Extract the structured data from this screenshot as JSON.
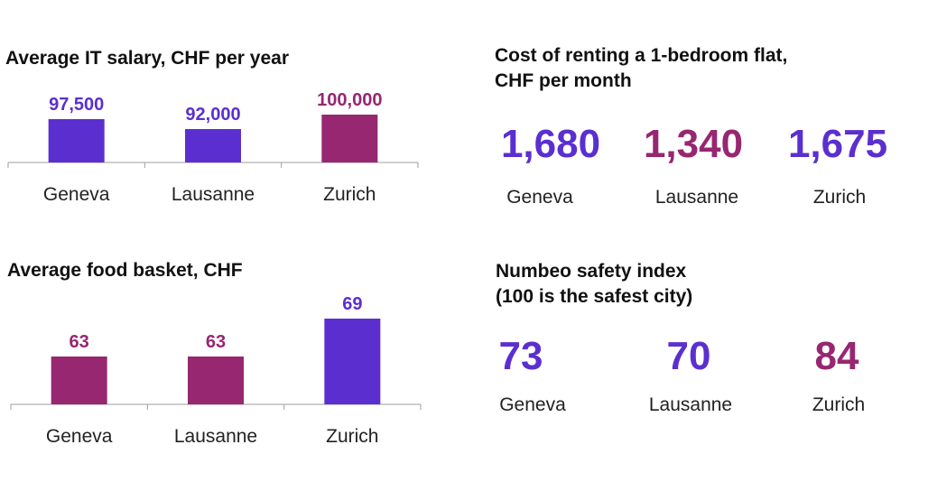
{
  "colors": {
    "purple": "#5b2fcf",
    "magenta": "#962770",
    "axis": "#9e9e9e",
    "text": "#111111"
  },
  "chart_data": [
    {
      "type": "bar",
      "title": "Average IT salary, CHF per year",
      "categories": [
        "Geneva",
        "Lausanne",
        "Zurich"
      ],
      "values": [
        97500,
        92000,
        100000
      ],
      "value_labels": [
        "97,500",
        "92,000",
        "100,000"
      ],
      "colors": [
        "purple",
        "purple",
        "magenta"
      ],
      "ylim": [
        80000,
        100000
      ]
    },
    {
      "type": "bar",
      "title": "Average food basket, CHF",
      "categories": [
        "Geneva",
        "Lausanne",
        "Zurich"
      ],
      "values": [
        63,
        63,
        69
      ],
      "value_labels": [
        "63",
        "63",
        "69"
      ],
      "colors": [
        "magenta",
        "magenta",
        "purple"
      ],
      "ylim": [
        60,
        69
      ]
    },
    {
      "type": "table",
      "title": "Cost of renting a 1-bedroom flat, CHF per month",
      "title_lines": [
        "Cost of renting a 1-bedroom flat,",
        "CHF per month"
      ],
      "categories": [
        "Geneva",
        "Lausanne",
        "Zurich"
      ],
      "values": [
        1680,
        1340,
        1675
      ],
      "value_labels": [
        "1,680",
        "1,340",
        "1,675"
      ],
      "colors": [
        "purple",
        "magenta",
        "purple"
      ]
    },
    {
      "type": "table",
      "title": "Numbeo safety index (100 is the safest city)",
      "title_lines": [
        "Numbeo safety index",
        "(100 is the safest city)"
      ],
      "categories": [
        "Geneva",
        "Lausanne",
        "Zurich"
      ],
      "values": [
        73,
        70,
        84
      ],
      "value_labels": [
        "73",
        "70",
        "84"
      ],
      "colors": [
        "purple",
        "purple",
        "magenta"
      ]
    }
  ]
}
